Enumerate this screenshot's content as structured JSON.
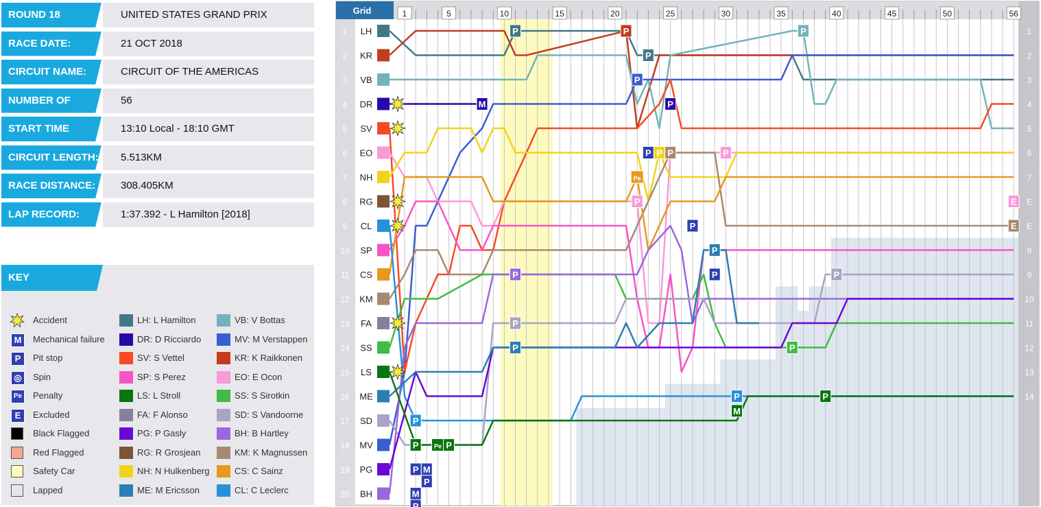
{
  "info": [
    {
      "label": "ROUND 18",
      "value": "UNITED STATES GRAND PRIX"
    },
    {
      "label": "RACE DATE:",
      "value": "21 OCT 2018"
    },
    {
      "label": "CIRCUIT NAME:",
      "value": "CIRCUIT OF THE AMERICAS"
    },
    {
      "label": "NUMBER OF LAPS:",
      "value": "56"
    },
    {
      "label": "START TIME",
      "value": "13:10 Local - 18:10 GMT"
    },
    {
      "label": "CIRCUIT LENGTH:",
      "value": "5.513KM"
    },
    {
      "label": "RACE DISTANCE:",
      "value": "308.405KM"
    },
    {
      "label": "LAP RECORD:",
      "value": "1:37.392 - L Hamilton [2018]"
    }
  ],
  "key": {
    "title": "KEY",
    "symbols": [
      {
        "icon": "accident-icon",
        "label": "Accident"
      },
      {
        "icon": "mechanical-icon",
        "glyph": "M",
        "label": "Mechanical failure"
      },
      {
        "icon": "pit-icon",
        "glyph": "P",
        "label": "Pit stop"
      },
      {
        "icon": "spin-icon",
        "glyph": "◎",
        "label": "Spin"
      },
      {
        "icon": "penalty-icon",
        "glyph": "Pe",
        "label": "Penalty"
      },
      {
        "icon": "excluded-icon",
        "glyph": "E",
        "label": "Excluded"
      },
      {
        "icon": "black-flag-icon",
        "color": "#000000",
        "label": "Black Flagged"
      },
      {
        "icon": "red-flag-icon",
        "color": "#f4a593",
        "label": "Red Flagged"
      },
      {
        "icon": "safety-car-icon",
        "color": "#fdfac0",
        "label": "Safety Car"
      },
      {
        "icon": "lapped-icon",
        "color": "#dfe6ef",
        "label": "Lapped"
      }
    ],
    "drivers": [
      {
        "code": "LH",
        "label": "LH: L Hamilton",
        "color": "#427885"
      },
      {
        "code": "VB",
        "label": "VB: V Bottas",
        "color": "#72b3b9"
      },
      {
        "code": "DR",
        "label": "DR: D Ricciardo",
        "color": "#2a09aa"
      },
      {
        "code": "MV",
        "label": "MV: M Verstappen",
        "color": "#3a5ed1"
      },
      {
        "code": "SV",
        "label": "SV: S Vettel",
        "color": "#f64a25"
      },
      {
        "code": "KR",
        "label": "KR: K Raikkonen",
        "color": "#c23c21"
      },
      {
        "code": "SP",
        "label": "SP: S Perez",
        "color": "#f754c5"
      },
      {
        "code": "EO",
        "label": "EO: E Ocon",
        "color": "#f99ad9"
      },
      {
        "code": "LS",
        "label": "LS: L Stroll",
        "color": "#0a7511"
      },
      {
        "code": "SS",
        "label": "SS: S Sirotkin",
        "color": "#41bb44"
      },
      {
        "code": "FA",
        "label": "FA: F Alonso",
        "color": "#85809e"
      },
      {
        "code": "SD",
        "label": "SD: S Vandoorne",
        "color": "#a9a3c4"
      },
      {
        "code": "PG",
        "label": "PG: P Gasly",
        "color": "#6a08d8"
      },
      {
        "code": "BH",
        "label": "BH: B Hartley",
        "color": "#9a67dd"
      },
      {
        "code": "RG",
        "label": "RG: R Grosjean",
        "color": "#7d5336"
      },
      {
        "code": "KM",
        "label": "KM: K Magnussen",
        "color": "#a68a70"
      },
      {
        "code": "NH",
        "label": "NH: N Hulkenberg",
        "color": "#f2d319"
      },
      {
        "code": "CS",
        "label": "CS: C Sainz",
        "color": "#e6981f"
      },
      {
        "code": "ME",
        "label": "ME: M Ericsson",
        "color": "#2b7eb2"
      },
      {
        "code": "CL",
        "label": "CL: C Leclerc",
        "color": "#2891da"
      }
    ]
  },
  "chart_data": {
    "type": "line",
    "title": "",
    "grid_header": "Grid",
    "total_laps": 56,
    "lap_ticks": [
      1,
      5,
      10,
      15,
      20,
      25,
      30,
      35,
      40,
      45,
      50,
      56
    ],
    "safety_car_laps": [
      10,
      13
    ],
    "grid": [
      "LH",
      "KR",
      "VB",
      "DR",
      "SV",
      "EO",
      "NH",
      "RG",
      "CL",
      "SP",
      "CS",
      "KM",
      "FA",
      "SS",
      "LS",
      "ME",
      "SD",
      "MV",
      "PG",
      "BH"
    ],
    "final_positions": [
      "1",
      "2",
      "3",
      "4",
      "5",
      "6",
      "7",
      "E",
      "E",
      "8",
      "9",
      "10",
      "11",
      "12",
      "13",
      "14"
    ],
    "series": [
      {
        "code": "LH",
        "grid": 1,
        "pos": {
          "0": 1,
          "2": 2,
          "10": 2,
          "11": 1,
          "21": 1,
          "22": 2,
          "36": 2,
          "37": 3,
          "56": 3
        }
      },
      {
        "code": "KR",
        "grid": 2,
        "pos": {
          "0": 2,
          "2": 1,
          "10": 1,
          "11": 2,
          "12": 2,
          "21": 1,
          "22": 5,
          "24": 2,
          "56": 2
        }
      },
      {
        "code": "VB",
        "grid": 3,
        "pos": {
          "0": 3,
          "12": 3,
          "13": 2,
          "21": 2,
          "22": 4,
          "23": 3,
          "24": 5,
          "25": 2,
          "36": 1,
          "37": 1,
          "38": 4,
          "39": 4,
          "40": 3,
          "53": 3,
          "54": 5,
          "56": 5
        }
      },
      {
        "code": "DR",
        "grid": 4,
        "pos": {
          "0": 4,
          "8": 4
        }
      },
      {
        "code": "MV",
        "grid": 18,
        "pos": {
          "0": 18,
          "1": 15,
          "2": 9,
          "3": 9,
          "6": 6,
          "8": 5,
          "9": 4,
          "21": 4,
          "22": 3,
          "35": 3,
          "36": 2,
          "56": 2
        }
      },
      {
        "code": "SV",
        "grid": 5,
        "pos": {
          "0": 5,
          "1": 15,
          "2": 13,
          "3": 12,
          "4": 11,
          "5": 11,
          "6": 9,
          "7": 9,
          "8": 10,
          "9": 10,
          "10": 8,
          "11": 7,
          "12": 6,
          "13": 5,
          "21": 5,
          "22": 5,
          "24": 4,
          "25": 3,
          "26": 5,
          "53": 5,
          "54": 4,
          "56": 4
        }
      },
      {
        "code": "EO",
        "grid": 6,
        "pos": {
          "0": 6,
          "1": 7,
          "3": 7,
          "4": 8,
          "7": 8,
          "8": 9,
          "9": 9,
          "10": 8,
          "21": 8,
          "22": 8,
          "23": 13,
          "24": 13,
          "25": 6,
          "56": 6
        }
      },
      {
        "code": "NH",
        "grid": 7,
        "pos": {
          "0": 7,
          "1": 6,
          "3": 6,
          "4": 5,
          "7": 5,
          "8": 6,
          "9": 5,
          "10": 5,
          "11": 6,
          "21": 6,
          "22": 6,
          "23": 8,
          "24": 6,
          "25": 7,
          "29": 7,
          "30": 7,
          "31": 6,
          "56": 6
        }
      },
      {
        "code": "KM",
        "grid": 12,
        "pos": {
          "0": 12,
          "1": 11,
          "2": 10,
          "3": 10,
          "4": 10,
          "5": 11,
          "8": 11,
          "9": 10,
          "21": 10,
          "22": 9,
          "23": 8,
          "24": 7,
          "25": 6,
          "29": 6,
          "30": 9,
          "56": 9
        }
      },
      {
        "code": "SP",
        "grid": 10,
        "pos": {
          "0": 10,
          "1": 9,
          "2": 8,
          "3": 8,
          "4": 8,
          "5": 9,
          "6": 10,
          "8": 10,
          "9": 9,
          "20": 9,
          "21": 9,
          "22": 12,
          "23": 14,
          "24": 14,
          "25": 11,
          "26": 15,
          "27": 14,
          "28": 10,
          "56": 10
        }
      },
      {
        "code": "CS",
        "grid": 11,
        "pos": {
          "0": 11,
          "1": 7,
          "3": 7,
          "4": 7,
          "5": 7,
          "6": 7,
          "8": 7,
          "9": 8,
          "21": 8,
          "22": 7,
          "23": 10,
          "24": 9,
          "25": 8,
          "29": 8,
          "30": 7,
          "56": 7
        }
      },
      {
        "code": "CL",
        "grid": 9,
        "pos": {
          "0": 9,
          "1": 16,
          "2": 17,
          "16": 17,
          "17": 16,
          "30": 16,
          "31": 16,
          "56": 16
        }
      },
      {
        "code": "SS",
        "grid": 14,
        "pos": {
          "0": 14,
          "1": 12,
          "3": 12,
          "4": 12,
          "8": 11,
          "9": 11,
          "20": 11,
          "21": 12,
          "27": 12,
          "28": 11,
          "29": 13,
          "30": 14,
          "38": 14,
          "39": 14,
          "40": 13,
          "56": 13
        }
      },
      {
        "code": "BH",
        "grid": 20,
        "pos": {
          "0": 20,
          "1": 14,
          "2": 13,
          "3": 13,
          "8": 13,
          "9": 11,
          "21": 11,
          "22": 11,
          "23": 10,
          "25": 9,
          "26": 10,
          "27": 13,
          "28": 12,
          "56": 12
        }
      },
      {
        "code": "SD",
        "grid": 17,
        "pos": {
          "0": 17,
          "1": 18,
          "8": 18,
          "9": 13,
          "20": 13,
          "21": 12,
          "28": 12,
          "29": 13,
          "38": 13,
          "39": 11,
          "56": 11
        }
      },
      {
        "code": "PG",
        "grid": 19,
        "pos": {
          "0": 19,
          "2": 15,
          "3": 16,
          "8": 16,
          "9": 14,
          "20": 14,
          "21": 14,
          "22": 14,
          "35": 14,
          "36": 13,
          "40": 13,
          "41": 12,
          "56": 12
        }
      },
      {
        "code": "ME",
        "grid": 16,
        "pos": {
          "0": 16,
          "2": 15,
          "3": 15,
          "4": 15,
          "5": 15,
          "8": 15,
          "9": 14,
          "20": 14,
          "21": 13,
          "22": 14,
          "24": 13,
          "27": 13,
          "28": 10,
          "30": 10,
          "31": 13,
          "33": 13
        }
      },
      {
        "code": "LS",
        "grid": 15,
        "pos": {
          "0": 15,
          "2": 18,
          "8": 18,
          "9": 17,
          "31": 17,
          "32": 16,
          "56": 16
        }
      }
    ],
    "events": [
      {
        "type": "P",
        "lap": 11,
        "pos": 1
      },
      {
        "type": "P",
        "lap": 21,
        "pos": 1
      },
      {
        "type": "P",
        "lap": 37,
        "pos": 1
      },
      {
        "type": "P",
        "lap": 23,
        "pos": 2
      },
      {
        "type": "P",
        "lap": 22,
        "pos": 3
      },
      {
        "type": "P",
        "lap": 25,
        "pos": 4
      },
      {
        "type": "M",
        "lap": 8,
        "pos": 4
      },
      {
        "type": "P",
        "lap": 23,
        "pos": 6
      },
      {
        "type": "P",
        "lap": 24,
        "pos": 6
      },
      {
        "type": "P",
        "lap": 25,
        "pos": 6
      },
      {
        "type": "P",
        "lap": 30,
        "pos": 6
      },
      {
        "type": "Pe",
        "lap": 22,
        "pos": 7
      },
      {
        "type": "P",
        "lap": 22,
        "pos": 8
      },
      {
        "type": "P",
        "lap": 27,
        "pos": 9
      },
      {
        "type": "P",
        "lap": 29,
        "pos": 10
      },
      {
        "type": "P",
        "lap": 11,
        "pos": 11
      },
      {
        "type": "P",
        "lap": 29,
        "pos": 11
      },
      {
        "type": "P",
        "lap": 40,
        "pos": 11
      },
      {
        "type": "P",
        "lap": 11,
        "pos": 13
      },
      {
        "type": "P",
        "lap": 11,
        "pos": 14
      },
      {
        "type": "P",
        "lap": 36,
        "pos": 14
      },
      {
        "type": "P",
        "lap": 31,
        "pos": 16
      },
      {
        "type": "M",
        "lap": 31,
        "pos": 16.6
      },
      {
        "type": "P",
        "lap": 39,
        "pos": 16
      },
      {
        "type": "P",
        "lap": 2,
        "pos": 17
      },
      {
        "type": "P",
        "lap": 2,
        "pos": 18
      },
      {
        "type": "Pe",
        "lap": 4,
        "pos": 18
      },
      {
        "type": "P",
        "lap": 5,
        "pos": 18
      },
      {
        "type": "M",
        "lap": 3,
        "pos": 19
      },
      {
        "type": "P",
        "lap": 2,
        "pos": 19
      },
      {
        "type": "P",
        "lap": 3,
        "pos": 19.5
      },
      {
        "type": "M",
        "lap": 2,
        "pos": 20
      },
      {
        "type": "P",
        "lap": 2,
        "pos": 20.5
      },
      {
        "type": "E",
        "lap": 56,
        "pos": 8
      },
      {
        "type": "E",
        "lap": 56,
        "pos": 9
      }
    ],
    "accidents": [
      4,
      5,
      8,
      9,
      13,
      15
    ],
    "lapped_steps": [
      [
        17,
        22,
        17
      ],
      [
        22,
        25,
        17
      ],
      [
        25,
        30,
        16
      ],
      [
        30,
        35,
        15
      ],
      [
        35,
        37,
        12
      ],
      [
        37,
        38,
        13
      ],
      [
        38,
        40,
        12
      ],
      [
        40,
        41,
        10
      ]
    ]
  }
}
